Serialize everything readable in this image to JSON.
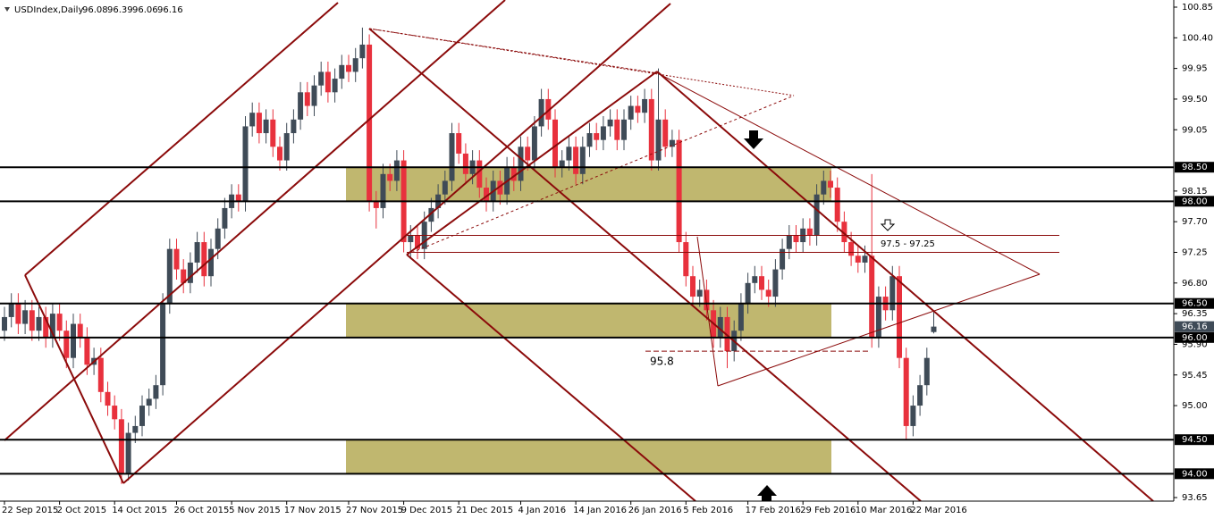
{
  "chart_data": {
    "type": "candlestick",
    "title": "USDIndex,Daily",
    "categories": [
      "22 Sep 2015",
      null,
      null,
      null,
      null,
      null,
      null,
      null,
      "2 Oct 2015",
      null,
      null,
      null,
      null,
      null,
      null,
      null,
      "14 Oct 2015",
      null,
      null,
      null,
      null,
      null,
      null,
      null,
      null,
      "26 Oct 2015",
      null,
      null,
      null,
      null,
      null,
      null,
      null,
      "5 Nov 2015",
      null,
      null,
      null,
      null,
      null,
      null,
      null,
      "17 Nov 2015",
      null,
      null,
      null,
      null,
      null,
      null,
      null,
      null,
      "27 Nov 2015",
      null,
      null,
      null,
      null,
      null,
      null,
      null,
      "9 Dec 2015",
      null,
      null,
      null,
      null,
      null,
      null,
      null,
      "21 Dec 2015",
      null,
      null,
      null,
      null,
      null,
      null,
      null,
      null,
      "4 Jan 2016",
      null,
      null,
      null,
      null,
      null,
      null,
      null,
      "14 Jan 2016",
      null,
      null,
      null,
      null,
      null,
      null,
      null,
      "26 Jan 2016",
      null,
      null,
      null,
      null,
      null,
      null,
      null,
      "5 Feb 2016",
      null,
      null,
      null,
      null,
      null,
      null,
      null,
      null,
      "17 Feb 2016",
      null,
      null,
      null,
      null,
      null,
      null,
      null,
      "29 Feb 2016",
      null,
      null,
      null,
      null,
      null,
      null,
      null,
      "10 Mar 2016",
      null,
      null,
      null,
      null,
      null,
      null,
      null,
      "22 Mar 2016",
      null,
      null,
      null
    ],
    "ohlc": [
      [
        96.1,
        96.45,
        95.95,
        96.3
      ],
      [
        96.3,
        96.65,
        96.15,
        96.5
      ],
      [
        96.5,
        96.65,
        96.05,
        96.2
      ],
      [
        96.2,
        96.55,
        96.05,
        96.4
      ],
      [
        96.4,
        96.55,
        95.95,
        96.1
      ],
      [
        96.1,
        96.45,
        95.95,
        96.3
      ],
      [
        96.3,
        96.45,
        95.85,
        96.0
      ],
      [
        96.0,
        96.5,
        95.85,
        96.35
      ],
      [
        96.35,
        96.5,
        95.95,
        96.1
      ],
      [
        96.1,
        96.25,
        95.55,
        95.7
      ],
      [
        95.7,
        96.35,
        95.55,
        96.2
      ],
      [
        96.2,
        96.35,
        95.85,
        96.0
      ],
      [
        96.0,
        96.15,
        95.45,
        95.6
      ],
      [
        95.6,
        95.85,
        95.45,
        95.7
      ],
      [
        95.7,
        95.85,
        95.05,
        95.2
      ],
      [
        95.2,
        95.35,
        94.85,
        95.0
      ],
      [
        95.0,
        95.15,
        94.65,
        94.8
      ],
      [
        94.8,
        94.95,
        93.85,
        94.0
      ],
      [
        94.0,
        94.75,
        93.9,
        94.6
      ],
      [
        94.6,
        94.85,
        94.45,
        94.7
      ],
      [
        94.7,
        95.15,
        94.55,
        95.0
      ],
      [
        95.0,
        95.25,
        94.85,
        95.1
      ],
      [
        95.1,
        95.45,
        94.95,
        95.3
      ],
      [
        95.3,
        96.65,
        95.15,
        96.5
      ],
      [
        96.5,
        97.45,
        96.35,
        97.3
      ],
      [
        97.3,
        97.45,
        96.85,
        97.0
      ],
      [
        97.0,
        97.15,
        96.65,
        96.8
      ],
      [
        96.8,
        97.25,
        96.65,
        97.1
      ],
      [
        97.1,
        97.55,
        96.95,
        97.4
      ],
      [
        97.4,
        97.55,
        96.75,
        96.9
      ],
      [
        96.9,
        97.45,
        96.75,
        97.3
      ],
      [
        97.3,
        97.75,
        97.15,
        97.6
      ],
      [
        97.6,
        98.05,
        97.45,
        97.9
      ],
      [
        97.9,
        98.25,
        97.75,
        98.1
      ],
      [
        98.1,
        98.25,
        97.85,
        98.0
      ],
      [
        98.0,
        99.25,
        97.85,
        99.1
      ],
      [
        99.1,
        99.45,
        98.95,
        99.3
      ],
      [
        99.3,
        99.45,
        98.85,
        99.0
      ],
      [
        99.0,
        99.35,
        98.85,
        99.2
      ],
      [
        99.2,
        99.35,
        98.65,
        98.8
      ],
      [
        98.8,
        98.95,
        98.45,
        98.6
      ],
      [
        98.6,
        99.15,
        98.45,
        99.0
      ],
      [
        99.0,
        99.35,
        98.85,
        99.2
      ],
      [
        99.2,
        99.75,
        99.05,
        99.6
      ],
      [
        99.6,
        99.75,
        99.25,
        99.4
      ],
      [
        99.4,
        99.85,
        99.25,
        99.7
      ],
      [
        99.7,
        100.05,
        99.55,
        99.9
      ],
      [
        99.9,
        100.05,
        99.45,
        99.6
      ],
      [
        99.6,
        99.95,
        99.45,
        99.8
      ],
      [
        99.8,
        100.15,
        99.65,
        100.0
      ],
      [
        100.0,
        100.15,
        99.75,
        99.9
      ],
      [
        99.9,
        100.25,
        99.75,
        100.1
      ],
      [
        100.1,
        100.55,
        99.95,
        100.3
      ],
      [
        100.3,
        100.45,
        97.85,
        98.0
      ],
      [
        98.0,
        98.15,
        97.6,
        97.9
      ],
      [
        97.9,
        98.55,
        97.75,
        98.4
      ],
      [
        98.4,
        98.55,
        98.15,
        98.3
      ],
      [
        98.3,
        98.75,
        98.15,
        98.6
      ],
      [
        98.6,
        98.75,
        97.25,
        97.4
      ],
      [
        97.4,
        97.65,
        97.15,
        97.5
      ],
      [
        97.5,
        97.65,
        97.15,
        97.3
      ],
      [
        97.3,
        97.85,
        97.15,
        97.7
      ],
      [
        97.7,
        98.05,
        97.55,
        97.9
      ],
      [
        97.9,
        98.25,
        97.75,
        98.1
      ],
      [
        98.1,
        98.45,
        97.95,
        98.3
      ],
      [
        98.3,
        99.15,
        98.15,
        99.0
      ],
      [
        99.0,
        99.15,
        98.55,
        98.7
      ],
      [
        98.7,
        98.85,
        98.25,
        98.4
      ],
      [
        98.4,
        98.75,
        98.25,
        98.6
      ],
      [
        98.6,
        98.75,
        98.05,
        98.2
      ],
      [
        98.2,
        98.35,
        97.85,
        98.0
      ],
      [
        98.0,
        98.45,
        97.85,
        98.3
      ],
      [
        98.3,
        98.45,
        97.95,
        98.1
      ],
      [
        98.1,
        98.65,
        97.95,
        98.5
      ],
      [
        98.5,
        98.65,
        98.15,
        98.3
      ],
      [
        98.3,
        98.95,
        98.15,
        98.8
      ],
      [
        98.8,
        98.95,
        98.45,
        98.6
      ],
      [
        98.6,
        99.25,
        98.45,
        99.1
      ],
      [
        99.1,
        99.65,
        98.95,
        99.5
      ],
      [
        99.5,
        99.65,
        99.05,
        99.2
      ],
      [
        99.2,
        99.35,
        98.35,
        98.5
      ],
      [
        98.5,
        98.75,
        98.35,
        98.6
      ],
      [
        98.6,
        98.95,
        98.45,
        98.8
      ],
      [
        98.8,
        98.95,
        98.25,
        98.4
      ],
      [
        98.4,
        98.95,
        98.25,
        98.8
      ],
      [
        98.8,
        99.15,
        98.65,
        99.0
      ],
      [
        99.0,
        99.15,
        98.75,
        98.9
      ],
      [
        98.9,
        99.25,
        98.75,
        99.1
      ],
      [
        99.1,
        99.35,
        98.95,
        99.2
      ],
      [
        99.2,
        99.35,
        98.75,
        98.9
      ],
      [
        98.9,
        99.35,
        98.75,
        99.2
      ],
      [
        99.2,
        99.55,
        99.05,
        99.4
      ],
      [
        99.4,
        99.55,
        99.15,
        99.3
      ],
      [
        99.3,
        99.65,
        99.15,
        99.5
      ],
      [
        99.5,
        99.65,
        98.45,
        98.6
      ],
      [
        98.6,
        99.95,
        98.45,
        99.2
      ],
      [
        99.2,
        99.35,
        98.65,
        98.8
      ],
      [
        98.8,
        99.05,
        98.65,
        98.9
      ],
      [
        98.9,
        99.05,
        97.25,
        97.4
      ],
      [
        97.4,
        97.55,
        96.75,
        96.9
      ],
      [
        96.9,
        97.05,
        96.45,
        96.6
      ],
      [
        96.6,
        96.85,
        96.45,
        96.7
      ],
      [
        96.7,
        96.85,
        96.25,
        96.4
      ],
      [
        96.4,
        96.55,
        95.85,
        96.0
      ],
      [
        96.0,
        96.45,
        95.85,
        96.3
      ],
      [
        96.3,
        96.45,
        95.55,
        95.8
      ],
      [
        95.8,
        96.25,
        95.65,
        96.1
      ],
      [
        96.1,
        96.65,
        95.95,
        96.5
      ],
      [
        96.5,
        96.95,
        96.35,
        96.8
      ],
      [
        96.8,
        97.05,
        96.65,
        96.9
      ],
      [
        96.9,
        97.05,
        96.55,
        96.7
      ],
      [
        96.7,
        96.85,
        96.45,
        96.6
      ],
      [
        96.6,
        97.15,
        96.45,
        97.0
      ],
      [
        97.0,
        97.45,
        96.85,
        97.3
      ],
      [
        97.3,
        97.65,
        97.15,
        97.5
      ],
      [
        97.5,
        97.65,
        97.25,
        97.4
      ],
      [
        97.4,
        97.75,
        97.25,
        97.6
      ],
      [
        97.6,
        97.75,
        97.35,
        97.5
      ],
      [
        97.5,
        98.25,
        97.35,
        98.1
      ],
      [
        98.1,
        98.45,
        97.95,
        98.3
      ],
      [
        98.3,
        98.45,
        98.05,
        98.2
      ],
      [
        98.2,
        98.35,
        97.55,
        97.7
      ],
      [
        97.7,
        97.85,
        97.25,
        97.4
      ],
      [
        97.4,
        97.55,
        97.05,
        97.2
      ],
      [
        97.2,
        97.35,
        96.95,
        97.1
      ],
      [
        97.1,
        97.35,
        96.95,
        97.2
      ],
      [
        97.2,
        98.4,
        95.85,
        96.0
      ],
      [
        96.0,
        96.75,
        95.85,
        96.6
      ],
      [
        96.6,
        96.75,
        96.25,
        96.4
      ],
      [
        96.4,
        97.05,
        96.25,
        96.9
      ],
      [
        96.9,
        97.05,
        95.55,
        95.7
      ],
      [
        95.7,
        95.85,
        94.5,
        94.7
      ],
      [
        94.7,
        95.15,
        94.55,
        95.0
      ],
      [
        95.0,
        95.45,
        94.85,
        95.3
      ],
      [
        95.3,
        95.85,
        95.15,
        95.7
      ],
      [
        96.08,
        96.39,
        96.06,
        96.16
      ]
    ],
    "colors": {
      "up": "#3f4b57",
      "down": "#e8313d",
      "zone": "#c0b76f",
      "level": "#000000",
      "trend": "#8b0a0a"
    },
    "ylim": [
      93.65,
      100.85
    ],
    "yticks": [
      100.85,
      {
        "value": 100.4,
        "label": "100.40"
      },
      99.95,
      {
        "value": 99.5,
        "label": "99.50"
      },
      99.05,
      98.15,
      {
        "value": 97.7,
        "label": "97.70"
      },
      97.25,
      {
        "value": 96.8,
        "label": "96.80"
      },
      96.35,
      {
        "value": 95.9,
        "label": "95.90"
      },
      95.45,
      {
        "value": 95.0,
        "label": "95.00"
      },
      93.65
    ],
    "levels": [
      {
        "value": 98.5,
        "label": "98.50"
      },
      {
        "value": 98.0,
        "label": "98.00"
      },
      {
        "value": 96.5,
        "label": "96.50"
      },
      {
        "value": 96.0,
        "label": "96.00"
      },
      {
        "value": 94.5,
        "label": "94.50"
      },
      {
        "value": 94.0,
        "label": "94.00"
      }
    ],
    "zones": [
      [
        98.0,
        98.5
      ],
      [
        96.0,
        96.5
      ],
      [
        94.0,
        94.5
      ]
    ],
    "range_lines": [
      97.5,
      97.25
    ],
    "range_label": "97.5 - 97.25",
    "support": 95.8
  }
}
